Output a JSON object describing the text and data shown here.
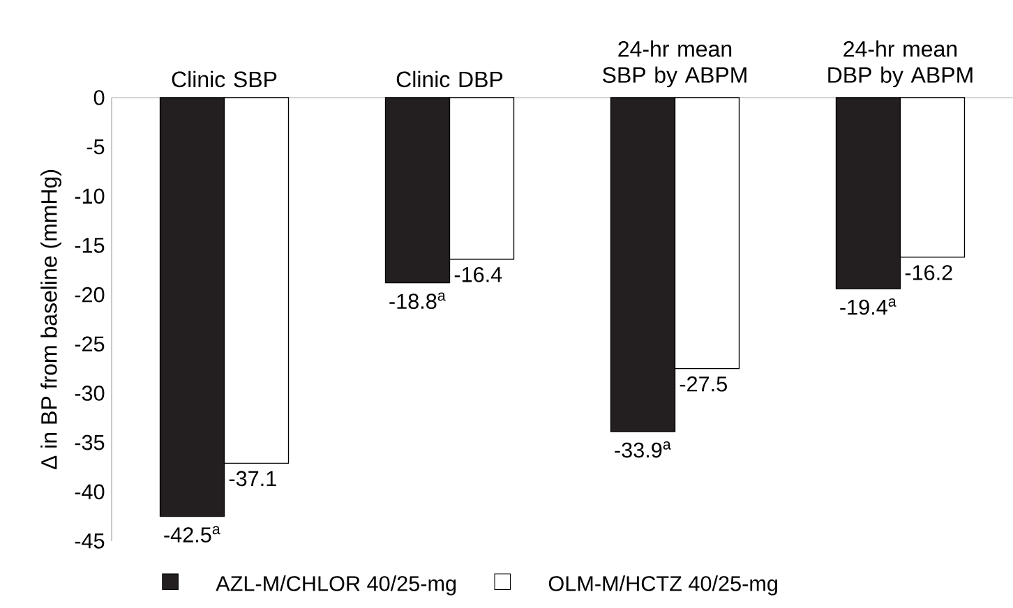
{
  "chart_data": {
    "type": "bar",
    "ylabel": "Δ in BP from baseline (mmHg)",
    "categories": [
      "Clinic SBP",
      "Clinic DBP",
      "24-hr mean SBP by ABPM",
      "24-hr mean DBP by ABPM"
    ],
    "series": [
      {
        "name": "AZL-M/CHLOR 40/25-mg",
        "color": "#231f20",
        "values": [
          -42.5,
          -18.8,
          -33.9,
          -19.4
        ],
        "value_labels": [
          "-42.5$^{a}$",
          "-18.8$^{a}$",
          "-33.9$^{a}$",
          "-19.4$^{a}$"
        ]
      },
      {
        "name": "OLM-M/HCTZ 40/25-mg",
        "color": "#ffffff",
        "values": [
          -37.1,
          -16.4,
          -27.5,
          -16.2
        ],
        "value_labels": [
          "-37.1",
          "-16.4",
          "-27.5",
          "-16.2"
        ]
      }
    ],
    "ylim": [
      -45,
      0
    ],
    "yticks": [
      -45,
      -40,
      -35,
      -30,
      -25,
      -20,
      -15,
      -10,
      -5,
      0
    ],
    "legend": "bottom"
  }
}
